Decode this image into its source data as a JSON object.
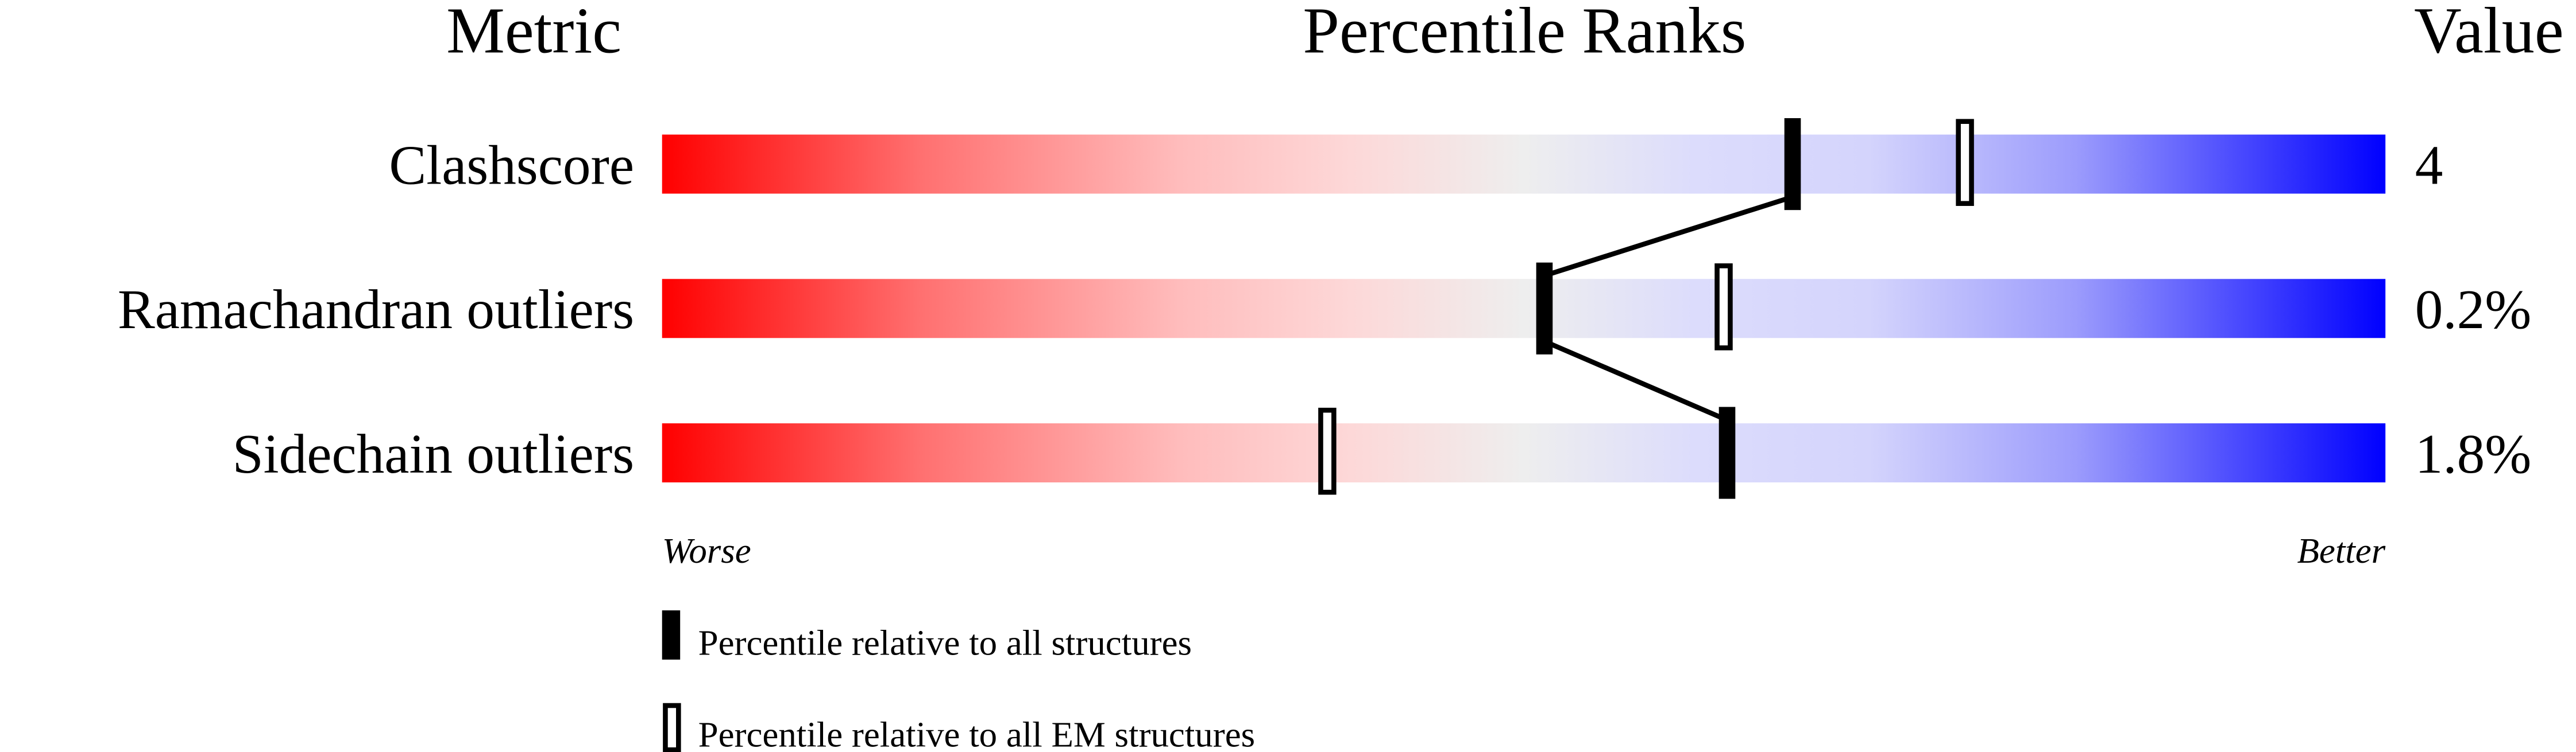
{
  "chart_data": {
    "type": "percentile-bar",
    "headers": {
      "metric": "Metric",
      "ranks": "Percentile Ranks",
      "value": "Value"
    },
    "xlim": [
      0,
      100
    ],
    "metrics": [
      {
        "label": "Clashscore",
        "value": "4",
        "percentile_all": 65.6,
        "percentile_em": 75.6
      },
      {
        "label": "Ramachandran outliers",
        "value": "0.2%",
        "percentile_all": 51.2,
        "percentile_em": 61.6
      },
      {
        "label": "Sidechain outliers",
        "value": "1.8%",
        "percentile_all": 61.8,
        "percentile_em": 38.6
      }
    ],
    "axis": {
      "worse": "Worse",
      "better": "Better"
    },
    "legend": [
      {
        "marker": "filled",
        "label": "Percentile relative to all structures"
      },
      {
        "marker": "hollow",
        "label": "Percentile relative to all EM structures"
      }
    ],
    "colors": {
      "worse": "#ff0000",
      "middle": "#eeeeee",
      "better": "#0000ff"
    }
  }
}
